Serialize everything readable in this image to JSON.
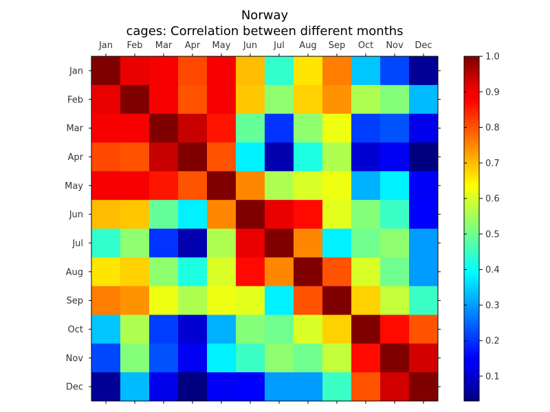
{
  "chart_data": {
    "type": "heatmap",
    "title": "Norway",
    "subtitle": "cages: Correlation between different months",
    "xlabel": "",
    "ylabel": "",
    "colormap": "jet",
    "x_tick_position": "top-and-bottom",
    "x_categories": [
      "Jan",
      "Feb",
      "Mar",
      "Apr",
      "May",
      "Jun",
      "Jul",
      "Aug",
      "Sep",
      "Oct",
      "Nov",
      "Dec"
    ],
    "y_categories": [
      "Jan",
      "Feb",
      "Mar",
      "Apr",
      "May",
      "Jun",
      "Jul",
      "Aug",
      "Sep",
      "Oct",
      "Nov",
      "Dec"
    ],
    "values": [
      [
        1.0,
        0.91,
        0.9,
        0.81,
        0.9,
        0.7,
        0.44,
        0.66,
        0.76,
        0.34,
        0.22,
        0.05
      ],
      [
        0.91,
        1.0,
        0.9,
        0.8,
        0.9,
        0.69,
        0.53,
        0.68,
        0.74,
        0.56,
        0.52,
        0.33
      ],
      [
        0.9,
        0.9,
        1.0,
        0.94,
        0.86,
        0.49,
        0.2,
        0.53,
        0.62,
        0.21,
        0.23,
        0.12
      ],
      [
        0.81,
        0.8,
        0.94,
        1.0,
        0.8,
        0.38,
        0.07,
        0.42,
        0.56,
        0.1,
        0.14,
        0.03
      ],
      [
        0.9,
        0.9,
        0.86,
        0.8,
        1.0,
        0.75,
        0.56,
        0.6,
        0.62,
        0.32,
        0.38,
        0.13
      ],
      [
        0.7,
        0.69,
        0.49,
        0.38,
        0.75,
        1.0,
        0.91,
        0.87,
        0.61,
        0.52,
        0.45,
        0.15
      ],
      [
        0.44,
        0.53,
        0.2,
        0.07,
        0.56,
        0.91,
        1.0,
        0.75,
        0.38,
        0.5,
        0.53,
        0.3
      ],
      [
        0.66,
        0.68,
        0.53,
        0.42,
        0.6,
        0.87,
        0.75,
        1.0,
        0.8,
        0.6,
        0.5,
        0.3
      ],
      [
        0.76,
        0.74,
        0.62,
        0.56,
        0.62,
        0.61,
        0.38,
        0.8,
        1.0,
        0.68,
        0.58,
        0.45
      ],
      [
        0.34,
        0.56,
        0.21,
        0.1,
        0.32,
        0.52,
        0.5,
        0.6,
        0.68,
        1.0,
        0.87,
        0.8
      ],
      [
        0.22,
        0.52,
        0.23,
        0.14,
        0.38,
        0.45,
        0.53,
        0.5,
        0.58,
        0.87,
        1.0,
        0.93
      ],
      [
        0.05,
        0.33,
        0.12,
        0.03,
        0.13,
        0.15,
        0.3,
        0.3,
        0.45,
        0.8,
        0.93,
        1.0
      ]
    ],
    "colorbar": {
      "vmin": 0.03,
      "vmax": 1.0,
      "ticks": [
        0.1,
        0.2,
        0.3,
        0.4,
        0.5,
        0.6,
        0.7,
        0.8,
        0.9,
        1.0
      ],
      "tick_labels": [
        "0.1",
        "0.2",
        "0.3",
        "0.4",
        "0.5",
        "0.6",
        "0.7",
        "0.8",
        "0.9",
        "1.0"
      ]
    }
  }
}
